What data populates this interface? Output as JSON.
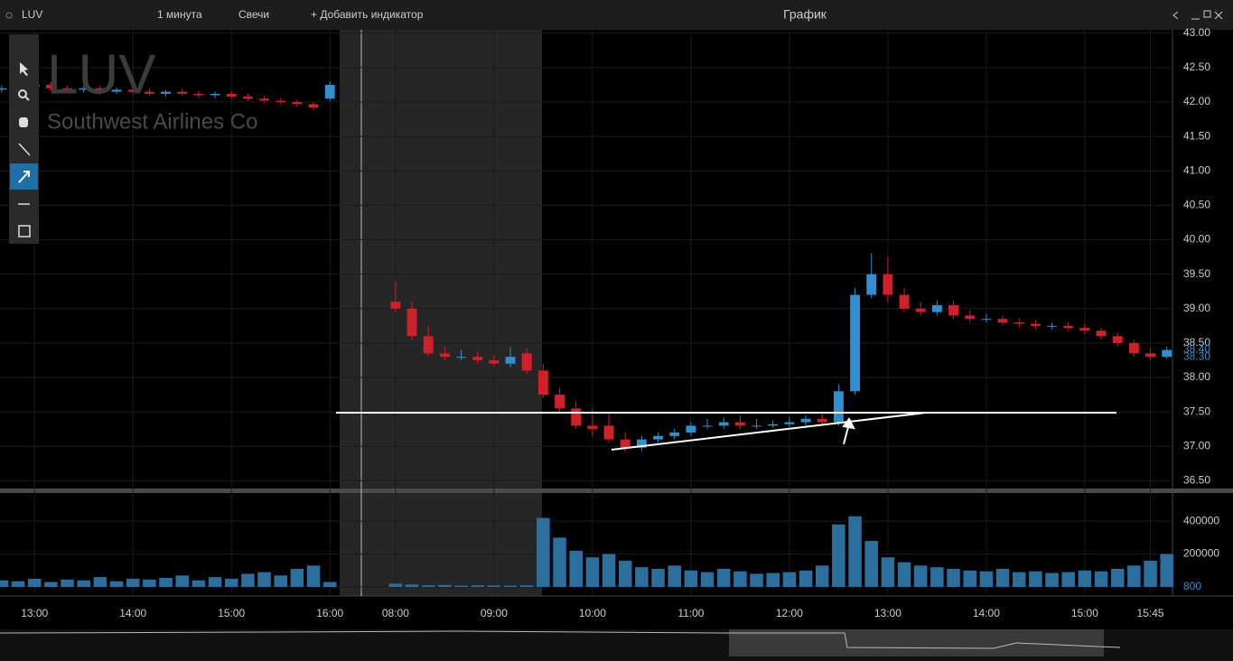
{
  "window": {
    "symbol": "LUV",
    "interval": "1 минута",
    "chart_style": "Свечи",
    "add_indicator": "+ Добавить индикатор",
    "title": "График"
  },
  "chart_data": {
    "type": "candlestick",
    "title": "LUV",
    "subtitle": "Southwest Airlines Co",
    "categories": [
      null,
      null,
      "13:00",
      null,
      null,
      null,
      null,
      null,
      "14:00",
      null,
      null,
      null,
      null,
      null,
      "15:00",
      null,
      null,
      null,
      null,
      null,
      "16:00",
      null,
      null,
      null,
      "08:00",
      null,
      null,
      null,
      null,
      null,
      "09:00",
      null,
      null,
      null,
      null,
      null,
      "10:00",
      null,
      null,
      null,
      null,
      null,
      "11:00",
      null,
      null,
      null,
      null,
      null,
      "12:00",
      null,
      null,
      null,
      null,
      null,
      "13:00",
      null,
      null,
      null,
      null,
      null,
      "14:00",
      null,
      null,
      null,
      null,
      null,
      "15:00",
      null,
      null,
      null,
      "15:45",
      null
    ],
    "open": [
      42.18,
      42.2,
      42.22,
      42.25,
      42.2,
      42.18,
      42.2,
      42.15,
      42.18,
      42.15,
      42.12,
      42.15,
      42.12,
      42.1,
      42.12,
      42.08,
      42.05,
      42.02,
      42.0,
      41.97,
      42.05,
      null,
      null,
      null,
      39.1,
      39.0,
      38.6,
      38.35,
      38.3,
      38.3,
      38.25,
      38.2,
      38.35,
      38.1,
      37.75,
      37.55,
      37.3,
      37.3,
      37.1,
      36.98,
      37.1,
      37.15,
      37.2,
      37.3,
      37.3,
      37.35,
      37.3,
      37.3,
      37.32,
      37.35,
      37.4,
      37.35,
      37.8,
      39.2,
      39.5,
      39.2,
      39.0,
      38.95,
      39.05,
      38.9,
      38.85,
      38.85,
      38.8,
      38.78,
      38.75,
      38.75,
      38.72,
      38.68,
      38.6,
      38.5,
      38.35,
      38.3
    ],
    "high": [
      42.24,
      42.26,
      42.28,
      42.29,
      42.24,
      42.23,
      42.24,
      42.21,
      42.22,
      42.2,
      42.18,
      42.19,
      42.16,
      42.15,
      42.16,
      42.12,
      42.09,
      42.06,
      42.03,
      42.0,
      42.3,
      null,
      null,
      null,
      39.4,
      39.1,
      38.75,
      38.45,
      38.4,
      38.38,
      38.33,
      38.45,
      38.42,
      38.2,
      37.85,
      37.65,
      37.55,
      37.5,
      37.2,
      37.15,
      37.2,
      37.25,
      37.35,
      37.4,
      37.42,
      37.45,
      37.4,
      37.38,
      37.42,
      37.45,
      37.5,
      37.9,
      39.3,
      39.8,
      39.75,
      39.3,
      39.1,
      39.12,
      39.12,
      38.98,
      38.92,
      38.9,
      38.86,
      38.83,
      38.8,
      38.8,
      38.78,
      38.72,
      38.65,
      38.55,
      38.42,
      38.45
    ],
    "low": [
      42.14,
      42.16,
      42.18,
      42.16,
      42.14,
      42.14,
      42.11,
      42.12,
      42.11,
      42.09,
      42.08,
      42.09,
      42.06,
      42.06,
      42.05,
      42.02,
      41.99,
      41.96,
      41.93,
      41.88,
      42.02,
      null,
      null,
      null,
      38.95,
      38.55,
      38.3,
      38.25,
      38.25,
      38.2,
      38.15,
      38.15,
      38.05,
      37.7,
      37.5,
      37.25,
      37.15,
      37.05,
      36.92,
      36.93,
      37.05,
      37.1,
      37.15,
      37.25,
      37.25,
      37.25,
      37.25,
      37.27,
      37.28,
      37.3,
      37.3,
      37.3,
      37.75,
      39.15,
      39.1,
      38.95,
      38.9,
      38.9,
      38.85,
      38.8,
      38.8,
      38.75,
      38.72,
      38.7,
      38.7,
      38.68,
      38.63,
      38.55,
      38.45,
      38.3,
      38.25,
      38.27
    ],
    "close": [
      42.2,
      42.22,
      42.25,
      42.2,
      42.18,
      42.2,
      42.15,
      42.18,
      42.15,
      42.12,
      42.15,
      42.12,
      42.1,
      42.12,
      42.08,
      42.05,
      42.02,
      42.0,
      41.97,
      41.92,
      42.25,
      null,
      null,
      null,
      39.0,
      38.6,
      38.35,
      38.3,
      38.3,
      38.25,
      38.2,
      38.3,
      38.1,
      37.75,
      37.55,
      37.3,
      37.25,
      37.1,
      36.98,
      37.1,
      37.15,
      37.2,
      37.3,
      37.3,
      37.35,
      37.3,
      37.3,
      37.32,
      37.35,
      37.4,
      37.35,
      37.8,
      39.2,
      39.5,
      39.2,
      39.0,
      38.95,
      39.05,
      38.9,
      38.85,
      38.85,
      38.8,
      38.78,
      38.75,
      38.75,
      38.72,
      38.68,
      38.6,
      38.5,
      38.35,
      38.3,
      38.4
    ],
    "up_color": "#2f8fd0",
    "down_color": "#d0202a",
    "ylim": [
      36.4,
      43.05
    ],
    "yticks": [
      {
        "value": 43,
        "label": "43.00"
      },
      {
        "value": 42.5,
        "label": "42.50"
      },
      {
        "value": 42,
        "label": "42.00"
      },
      {
        "value": 41.5,
        "label": "41.50"
      },
      {
        "value": 41,
        "label": "41.00"
      },
      {
        "value": 40.5,
        "label": "40.50"
      },
      {
        "value": 40,
        "label": "40.00"
      },
      {
        "value": 39.5,
        "label": "39.50"
      },
      {
        "value": 39,
        "label": "39.00"
      },
      {
        "value": 38.5,
        "label": "38.50"
      },
      {
        "value": 38,
        "label": "38.00"
      },
      {
        "value": 37.5,
        "label": "37.50"
      },
      {
        "value": 37,
        "label": "37.00"
      },
      {
        "value": 36.5,
        "label": "36.50"
      }
    ],
    "grid": true,
    "last_price_labels": [
      {
        "value": 38.4,
        "label": "38.40"
      },
      {
        "value": 38.3,
        "label": "38.30"
      }
    ],
    "volume": {
      "type": "bar",
      "color": "#2a6f9e",
      "ylim": [
        0,
        560000
      ],
      "yticks": [
        400000,
        200000,
        800
      ],
      "values": [
        40000,
        35000,
        50000,
        30000,
        45000,
        40000,
        60000,
        35000,
        50000,
        45000,
        55000,
        70000,
        40000,
        60000,
        50000,
        80000,
        90000,
        70000,
        110000,
        130000,
        30000,
        null,
        null,
        null,
        20000,
        15000,
        10000,
        12000,
        8000,
        10000,
        9000,
        8000,
        10000,
        420000,
        300000,
        220000,
        180000,
        200000,
        160000,
        120000,
        110000,
        130000,
        100000,
        90000,
        110000,
        95000,
        80000,
        85000,
        90000,
        100000,
        130000,
        380000,
        430000,
        280000,
        180000,
        150000,
        130000,
        120000,
        110000,
        100000,
        95000,
        110000,
        90000,
        95000,
        85000,
        90000,
        100000,
        95000,
        110000,
        130000,
        160000,
        200000
      ]
    }
  }
}
